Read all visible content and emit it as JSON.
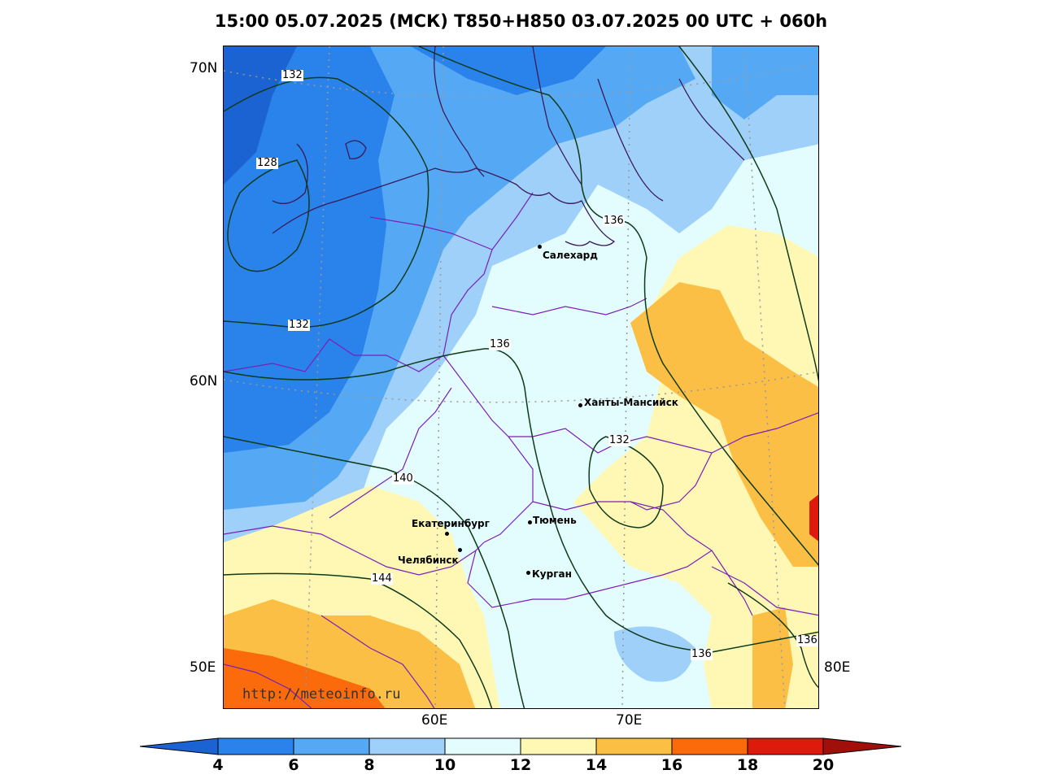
{
  "title": "15:00 05.07.2025 (МСК) T850+H850 03.07.2025 00 UTC + 060h",
  "lat_labels": [
    "70N",
    "60N",
    "50E"
  ],
  "lon_labels": [
    "60E",
    "70E",
    "80E"
  ],
  "cities": [
    {
      "name": "Салехард"
    },
    {
      "name": "Ханты-Мансийск"
    },
    {
      "name": "Екатеринбург"
    },
    {
      "name": "Тюмень"
    },
    {
      "name": "Челябинск"
    },
    {
      "name": "Курган"
    }
  ],
  "isolines": [
    "132",
    "128",
    "136",
    "132",
    "136",
    "132",
    "140",
    "144",
    "136",
    "136"
  ],
  "credit": "http://meteoinfo.ru",
  "colorbar": {
    "ticks": [
      "4",
      "6",
      "8",
      "10",
      "12",
      "14",
      "16",
      "18",
      "20"
    ],
    "colors": [
      "#1b62d2",
      "#2a83ea",
      "#55a9f4",
      "#9ed0fa",
      "#e3fdfe",
      "#fef8b4",
      "#fcbf45",
      "#fb6b0c",
      "#de1a0c",
      "#a10f0a"
    ]
  },
  "fill_colors": {
    "t4_6": "#1b62d2",
    "t6_8": "#2a83ea",
    "t8_10": "#55a9f4",
    "t10_12": "#9ed0fa",
    "t12_14": "#e3fdfe",
    "t14_16": "#fef8b4",
    "t16_18": "#fcbf45",
    "t18_20": "#fb6b0c",
    "t20": "#de1a0c"
  }
}
